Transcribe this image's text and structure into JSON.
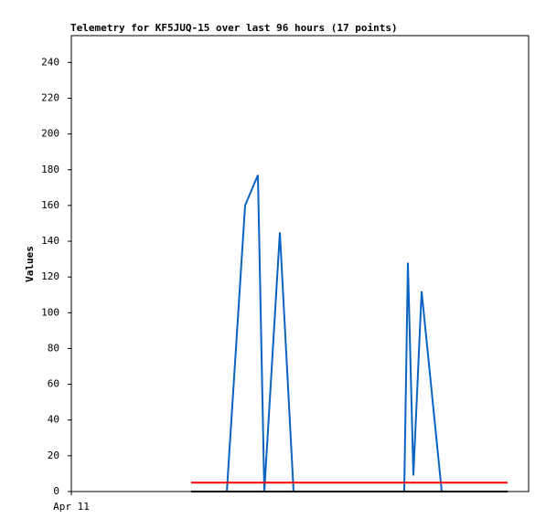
{
  "chart_data": {
    "type": "line",
    "title": "Telemetry for KF5JUQ-15 over last 96 hours (17 points)",
    "y_label": "Values",
    "xlim": [
      0,
      100
    ],
    "xticks": [
      {
        "value": 0,
        "label": "Apr 11"
      }
    ],
    "ylim": [
      0,
      255
    ],
    "yticks": [
      0,
      20,
      40,
      60,
      80,
      100,
      120,
      140,
      160,
      180,
      200,
      220,
      240
    ],
    "series": [
      {
        "color": "#0b63c2",
        "x": [
          34,
          38,
          40.8,
          42.2,
          45.6,
          48.6,
          72.8,
          73.6,
          74.8,
          76.6,
          81
        ],
        "values": [
          0,
          160,
          177,
          0,
          145,
          0,
          0,
          128,
          9,
          112,
          0
        ]
      },
      {
        "color": "#ff0000",
        "x": [
          26.2,
          95.4
        ],
        "values": [
          5,
          5
        ]
      },
      {
        "color": "#000000",
        "x": [
          26.2,
          95.4
        ],
        "values": [
          0,
          0
        ]
      }
    ]
  }
}
